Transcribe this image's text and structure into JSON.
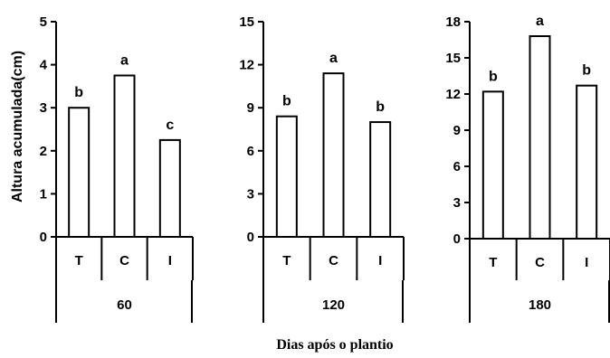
{
  "chart_data": {
    "type": "bar",
    "ylabel": "Altura  acumulada(cm)",
    "xlabel": "Dias após o plantio",
    "categories": [
      "T",
      "C",
      "I"
    ],
    "panels": [
      {
        "group": "60",
        "ylim": [
          0,
          5
        ],
        "yticks": [
          "0",
          "1",
          "2",
          "3",
          "4",
          "5"
        ],
        "values": [
          3.0,
          3.75,
          2.25
        ],
        "letters": [
          "b",
          "a",
          "c"
        ]
      },
      {
        "group": "120",
        "ylim": [
          0,
          15
        ],
        "yticks": [
          "0",
          "3",
          "6",
          "9",
          "12",
          "15"
        ],
        "values": [
          8.4,
          11.4,
          8.0
        ],
        "letters": [
          "b",
          "a",
          "b"
        ]
      },
      {
        "group": "180",
        "ylim": [
          0,
          18
        ],
        "yticks": [
          "0",
          "3",
          "6",
          "9",
          "12",
          "15",
          "18"
        ],
        "values": [
          12.2,
          16.8,
          12.7
        ],
        "letters": [
          "b",
          "a",
          "b"
        ]
      }
    ]
  }
}
